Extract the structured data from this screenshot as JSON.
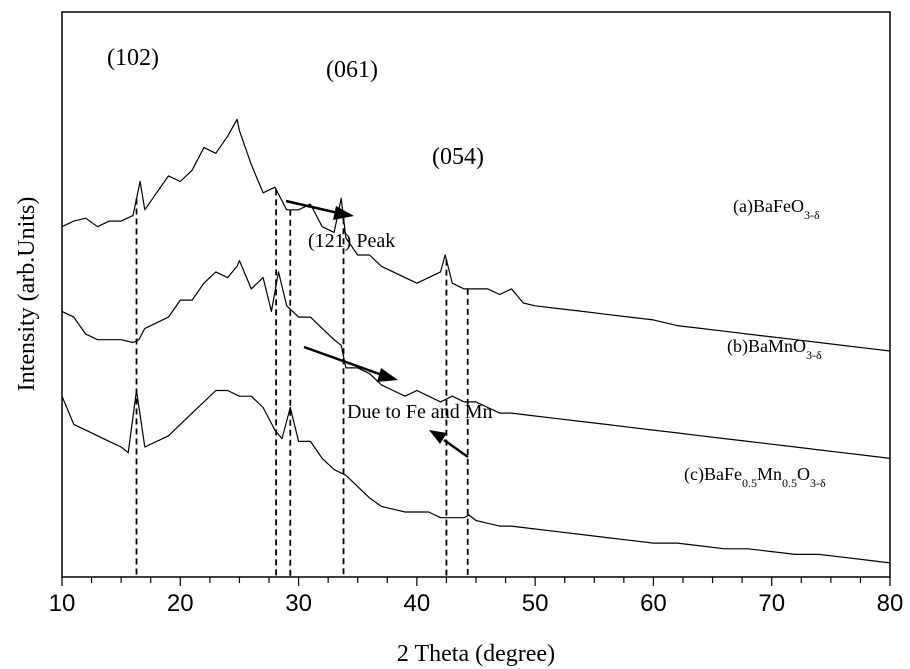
{
  "chart_data": {
    "type": "line",
    "xlabel": "2 Theta (degree)",
    "ylabel": "Intensity (arb.Units)",
    "xlim": [
      10,
      80
    ],
    "x_ticks": [
      "10",
      "20",
      "30",
      "40",
      "50",
      "60",
      "70",
      "80"
    ],
    "grid": false,
    "legend": "none",
    "y_ticks": "none",
    "series": [
      {
        "name": "(a)BaFeO3-δ",
        "label_parts": [
          {
            "t": "(a)BaFeO",
            "s": false
          },
          {
            "t": "3-δ",
            "s": true
          }
        ],
        "x": [
          10,
          11,
          12,
          13,
          14,
          15,
          16,
          16.6,
          17,
          18,
          19,
          20,
          21,
          22,
          23,
          24,
          24.8,
          25,
          26,
          27,
          28,
          29,
          30,
          31,
          32,
          33,
          33.6,
          34,
          35,
          36,
          37,
          38,
          39,
          40,
          41,
          42,
          42.4,
          43,
          44,
          45,
          46,
          47,
          48,
          49,
          50,
          52,
          54,
          56,
          58,
          60,
          62,
          64,
          66,
          68,
          70,
          72,
          74,
          76,
          78,
          80
        ],
        "values": [
          62,
          63,
          63.5,
          62,
          63,
          63,
          64,
          70,
          65,
          68,
          71,
          70,
          72,
          76,
          75,
          78,
          81,
          79,
          73,
          68,
          69,
          65,
          65,
          66,
          62,
          61,
          67,
          60,
          57,
          57,
          55,
          54,
          53,
          52,
          53,
          54,
          57,
          52,
          51,
          51,
          51,
          50,
          51,
          48.5,
          48,
          47.5,
          47,
          46.5,
          46,
          45.5,
          44.5,
          44,
          43.5,
          43,
          42.5,
          42,
          41.5,
          41,
          40.5,
          40
        ]
      },
      {
        "name": "(b)BaMnO3-δ",
        "label_parts": [
          {
            "t": "(b)BaMnO",
            "s": false
          },
          {
            "t": "3-δ",
            "s": true
          }
        ],
        "x": [
          10,
          11,
          12,
          13,
          14,
          15,
          16,
          16.5,
          17,
          18,
          19,
          20,
          21,
          22,
          23,
          24,
          24.8,
          25,
          26,
          27,
          27.7,
          28.3,
          29,
          30,
          31,
          32,
          33,
          33.6,
          34,
          35,
          36,
          37,
          38,
          39,
          40,
          41,
          42,
          43,
          44,
          45,
          46,
          47,
          48,
          50,
          52,
          54,
          56,
          58,
          60,
          62,
          64,
          66,
          68,
          70,
          72,
          74,
          76,
          78,
          80
        ],
        "values": [
          47,
          46,
          43,
          42,
          42,
          42,
          41.5,
          42,
          44,
          45,
          46,
          49,
          49,
          52,
          54,
          53,
          55,
          56,
          51,
          53,
          47,
          54,
          48,
          46,
          46,
          44,
          42,
          41,
          37,
          37,
          36,
          34,
          33,
          32,
          33,
          32,
          31,
          32,
          31,
          31,
          30,
          29,
          29,
          28.5,
          28,
          27.5,
          27,
          26.5,
          26,
          25.5,
          25,
          24.5,
          24,
          23.5,
          23,
          22.5,
          22,
          21.5,
          21
        ]
      },
      {
        "name": "(c)BaFe0.5Mn0.5O3-δ",
        "label_parts": [
          {
            "t": "(c)BaFe",
            "s": false
          },
          {
            "t": "0.5",
            "s": true
          },
          {
            "t": "Mn",
            "s": false
          },
          {
            "t": "0.5",
            "s": true
          },
          {
            "t": "O",
            "s": false
          },
          {
            "t": "3-δ",
            "s": true
          }
        ],
        "x": [
          10,
          11,
          12,
          13,
          14,
          15,
          15.6,
          16.3,
          17,
          18,
          19,
          20,
          21,
          22,
          23,
          24,
          25,
          26,
          27,
          28,
          28.6,
          29.3,
          30,
          31,
          32,
          33,
          34,
          35,
          36,
          37,
          38,
          39,
          40,
          41,
          42,
          43,
          44,
          44.4,
          45,
          46,
          47,
          48,
          50,
          52,
          54,
          56,
          58,
          60,
          62,
          64,
          66,
          68,
          70,
          72,
          74,
          76,
          78,
          80
        ],
        "values": [
          32,
          27,
          26,
          25,
          24,
          23,
          22,
          33,
          23,
          24,
          25,
          27,
          29,
          31,
          33,
          33,
          32,
          32,
          30,
          26,
          24.5,
          30,
          24,
          24,
          21,
          19,
          18,
          16,
          14,
          12.5,
          12,
          11.5,
          11.5,
          11.5,
          10.5,
          10.5,
          10.5,
          11,
          10,
          9.5,
          9,
          9,
          8.5,
          8,
          7.5,
          7,
          6.5,
          6,
          6,
          5.5,
          5,
          5,
          4.5,
          4,
          4,
          3.5,
          3,
          2.5
        ]
      }
    ],
    "reference_lines_x": [
      16.3,
      28.1,
      29.3,
      33.8,
      42.5,
      44.3
    ],
    "annotations": [
      {
        "text": "(102)",
        "x": 16.3
      },
      {
        "text": "(061)",
        "x": 33.8
      },
      {
        "text": "(054)",
        "x": 42.5
      },
      {
        "text": "(121) Peak",
        "x": 34
      },
      {
        "text": "Due to Fe and Mn",
        "x": 42
      }
    ]
  }
}
